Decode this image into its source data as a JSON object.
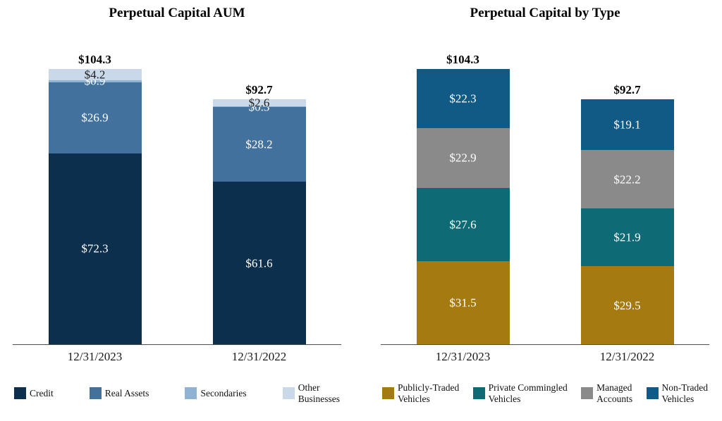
{
  "chart_data": [
    {
      "type": "bar",
      "subtype": "stacked",
      "title": "Perpetual Capital AUM",
      "categories": [
        "12/31/2023",
        "12/31/2022"
      ],
      "totals": [
        104.3,
        92.7
      ],
      "total_labels": [
        "$104.3",
        "$92.7"
      ],
      "value_prefix": "$",
      "series": [
        {
          "name": "Credit",
          "legend_label": "Credit",
          "color": "#0d2f4e",
          "label_color": "#ffffff",
          "values": [
            72.3,
            61.6
          ]
        },
        {
          "name": "Real Assets",
          "legend_label": "Real Assets",
          "color": "#41719c",
          "label_color": "#ffffff",
          "values": [
            26.9,
            28.2
          ]
        },
        {
          "name": "Secondaries",
          "legend_label": "Secondaries",
          "color": "#8fb4d3",
          "label_color": "#ffffff",
          "values": [
            0.9,
            0.3
          ]
        },
        {
          "name": "Other Businesses",
          "legend_label": "Other\nBusinesses",
          "color": "#c9d9ea",
          "label_color": "#1f1f1f",
          "values": [
            4.2,
            2.6
          ]
        }
      ],
      "legend_position": "bottom",
      "grid": false
    },
    {
      "type": "bar",
      "subtype": "stacked",
      "title": "Perpetual Capital by Type",
      "categories": [
        "12/31/2023",
        "12/31/2022"
      ],
      "totals": [
        104.3,
        92.7
      ],
      "total_labels": [
        "$104.3",
        "$92.7"
      ],
      "value_prefix": "$",
      "series": [
        {
          "name": "Publicly-Traded Vehicles",
          "legend_label": "Publicly-Traded\nVehicles",
          "color": "#a57b11",
          "label_color": "#ffffff",
          "values": [
            31.5,
            29.5
          ]
        },
        {
          "name": "Private Commingled Vehicles",
          "legend_label": "Private Commingled\nVehicles",
          "color": "#0e6b75",
          "label_color": "#ffffff",
          "values": [
            27.6,
            21.9
          ]
        },
        {
          "name": "Managed Accounts",
          "legend_label": "Managed\nAccounts",
          "color": "#8a8a8a",
          "label_color": "#ffffff",
          "values": [
            22.9,
            22.2
          ]
        },
        {
          "name": "Non-Traded Vehicles",
          "legend_label": "Non-Traded\nVehicles",
          "color": "#105a85",
          "label_color": "#ffffff",
          "values": [
            22.3,
            19.1
          ]
        }
      ],
      "legend_position": "bottom",
      "grid": false
    }
  ]
}
